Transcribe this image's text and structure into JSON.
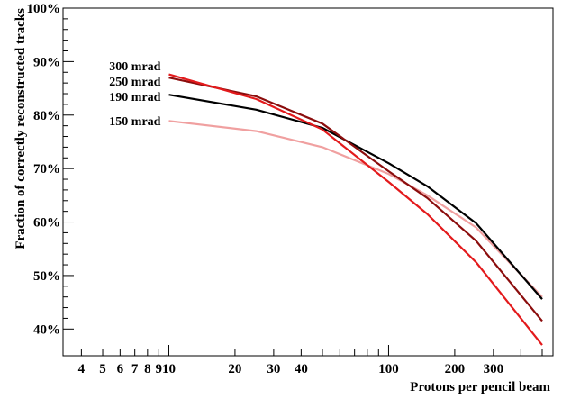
{
  "chart_data": {
    "type": "line",
    "xlabel": "Protons per pencil beam",
    "ylabel": "Fraction of correctly reconstructed tracks",
    "x_scale": "log",
    "xlim": [
      3.3,
      560
    ],
    "ylim": [
      0.35,
      1.0
    ],
    "y_ticks": [
      0.4,
      0.5,
      0.6,
      0.7,
      0.8,
      0.9,
      1.0
    ],
    "y_tick_labels": [
      "40%",
      "50%",
      "60%",
      "70%",
      "80%",
      "90%",
      "100%"
    ],
    "x_ticks": [
      4,
      5,
      6,
      7,
      8,
      9,
      10,
      20,
      30,
      40,
      100,
      200,
      300
    ],
    "x_tick_labels": [
      "4",
      "5",
      "6",
      "7",
      "8",
      "9",
      "10",
      "20",
      "30",
      "40",
      "100",
      "200",
      "300"
    ],
    "x": [
      10,
      25,
      50,
      100,
      150,
      250,
      500
    ],
    "grid": false,
    "series": [
      {
        "name": "300 mrad",
        "color": "#e31a1c",
        "values": [
          0.876,
          0.83,
          0.773,
          0.675,
          0.615,
          0.525,
          0.37
        ]
      },
      {
        "name": "250 mrad",
        "color": "#8b0d0d",
        "values": [
          0.87,
          0.835,
          0.784,
          0.695,
          0.645,
          0.565,
          0.415
        ]
      },
      {
        "name": "190 mrad",
        "color": "#000000",
        "values": [
          0.838,
          0.81,
          0.776,
          0.71,
          0.667,
          0.598,
          0.456
        ]
      },
      {
        "name": "150 mrad",
        "color": "#f0a0a0",
        "values": [
          0.789,
          0.77,
          0.74,
          0.69,
          0.65,
          0.59,
          0.46
        ]
      }
    ]
  }
}
